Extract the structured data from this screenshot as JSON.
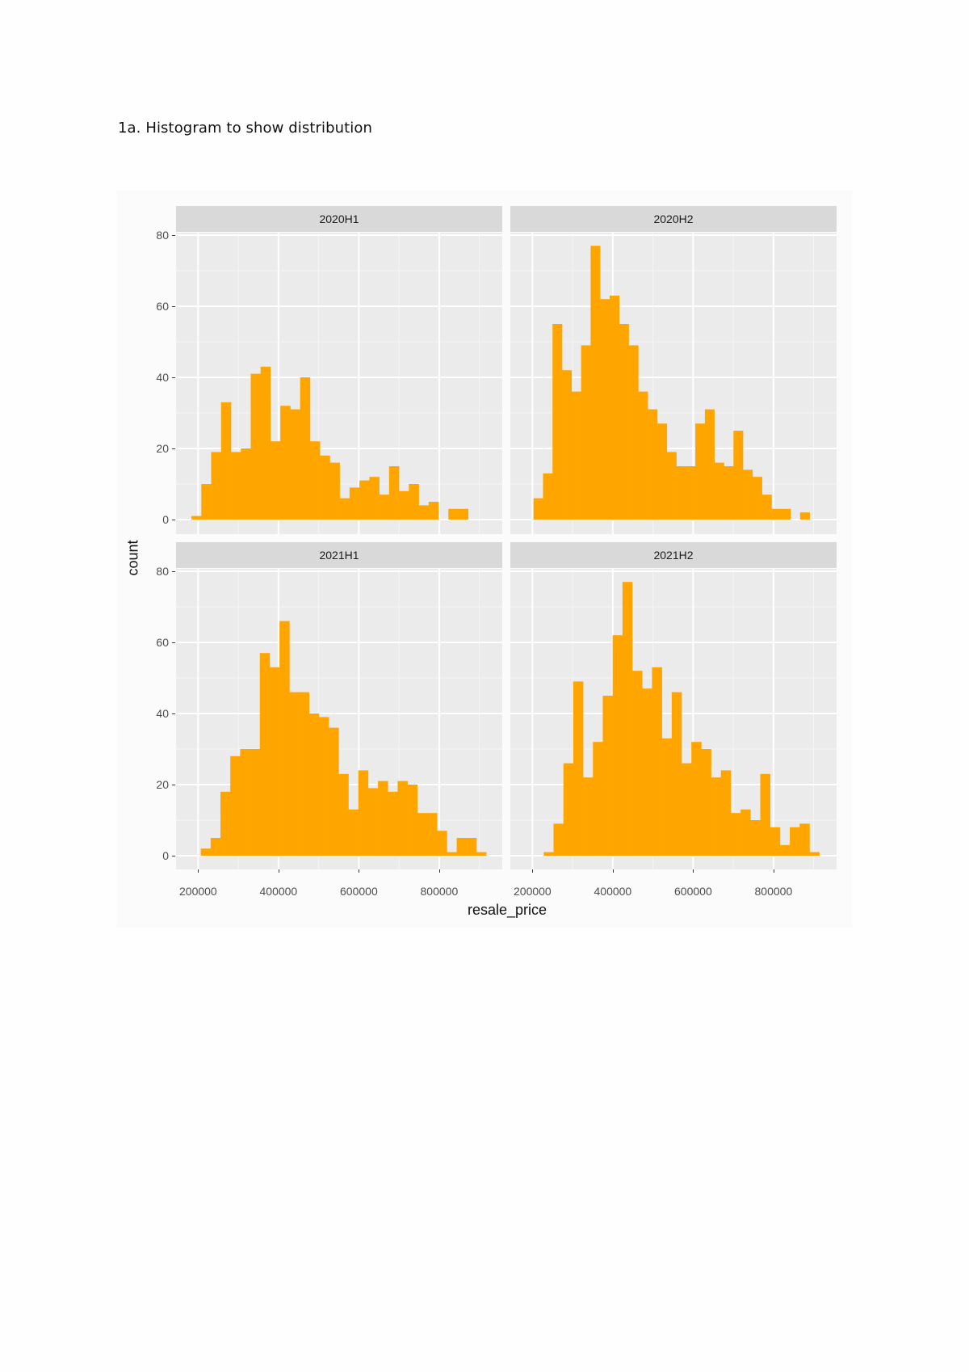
{
  "document": {
    "heading": "1a. Histogram to show distribution"
  },
  "chart_data": {
    "type": "bar",
    "subtype": "histogram",
    "layout": "facet_wrap 2x2",
    "title": "",
    "xlabel": "resale_price",
    "ylabel": "count",
    "fill_color": "#FFA500",
    "panel_bg": "#EBEBEB",
    "strip_bg": "#D9D9D9",
    "grid": true,
    "ylim": [
      0,
      80
    ],
    "yticks": [
      0,
      20,
      40,
      60,
      80
    ],
    "xticks": [
      200000,
      400000,
      600000,
      800000
    ],
    "xtick_labels": [
      "200000",
      "400000",
      "600000",
      "800000"
    ],
    "xlim": [
      145000,
      957000
    ],
    "panels": [
      {
        "name": "2020H1",
        "bin_start": 183300,
        "bin_width": 24600,
        "counts": [
          1,
          10,
          19,
          33,
          19,
          20,
          41,
          43,
          22,
          32,
          31,
          40,
          22,
          18,
          16,
          6,
          9,
          11,
          12,
          7,
          15,
          8,
          10,
          4,
          5,
          0,
          3,
          3
        ]
      },
      {
        "name": "2020H2",
        "bin_start": 202600,
        "bin_width": 23700,
        "counts": [
          6,
          13,
          55,
          42,
          36,
          49,
          77,
          62,
          63,
          55,
          49,
          36,
          31,
          27,
          19,
          15,
          15,
          27,
          31,
          16,
          15,
          25,
          14,
          12,
          7,
          3,
          3,
          0,
          2
        ]
      },
      {
        "name": "2021H1",
        "bin_start": 206600,
        "bin_width": 24500,
        "counts": [
          2,
          5,
          18,
          28,
          30,
          30,
          57,
          53,
          66,
          46,
          46,
          40,
          39,
          36,
          23,
          13,
          24,
          19,
          21,
          18,
          21,
          20,
          12,
          12,
          7,
          1,
          5,
          5,
          1
        ]
      },
      {
        "name": "2021H2",
        "bin_start": 228100,
        "bin_width": 24500,
        "counts": [
          1,
          9,
          26,
          49,
          22,
          32,
          45,
          62,
          77,
          52,
          47,
          53,
          33,
          46,
          26,
          32,
          30,
          22,
          24,
          12,
          13,
          10,
          23,
          8,
          3,
          8,
          9,
          1
        ]
      }
    ]
  }
}
